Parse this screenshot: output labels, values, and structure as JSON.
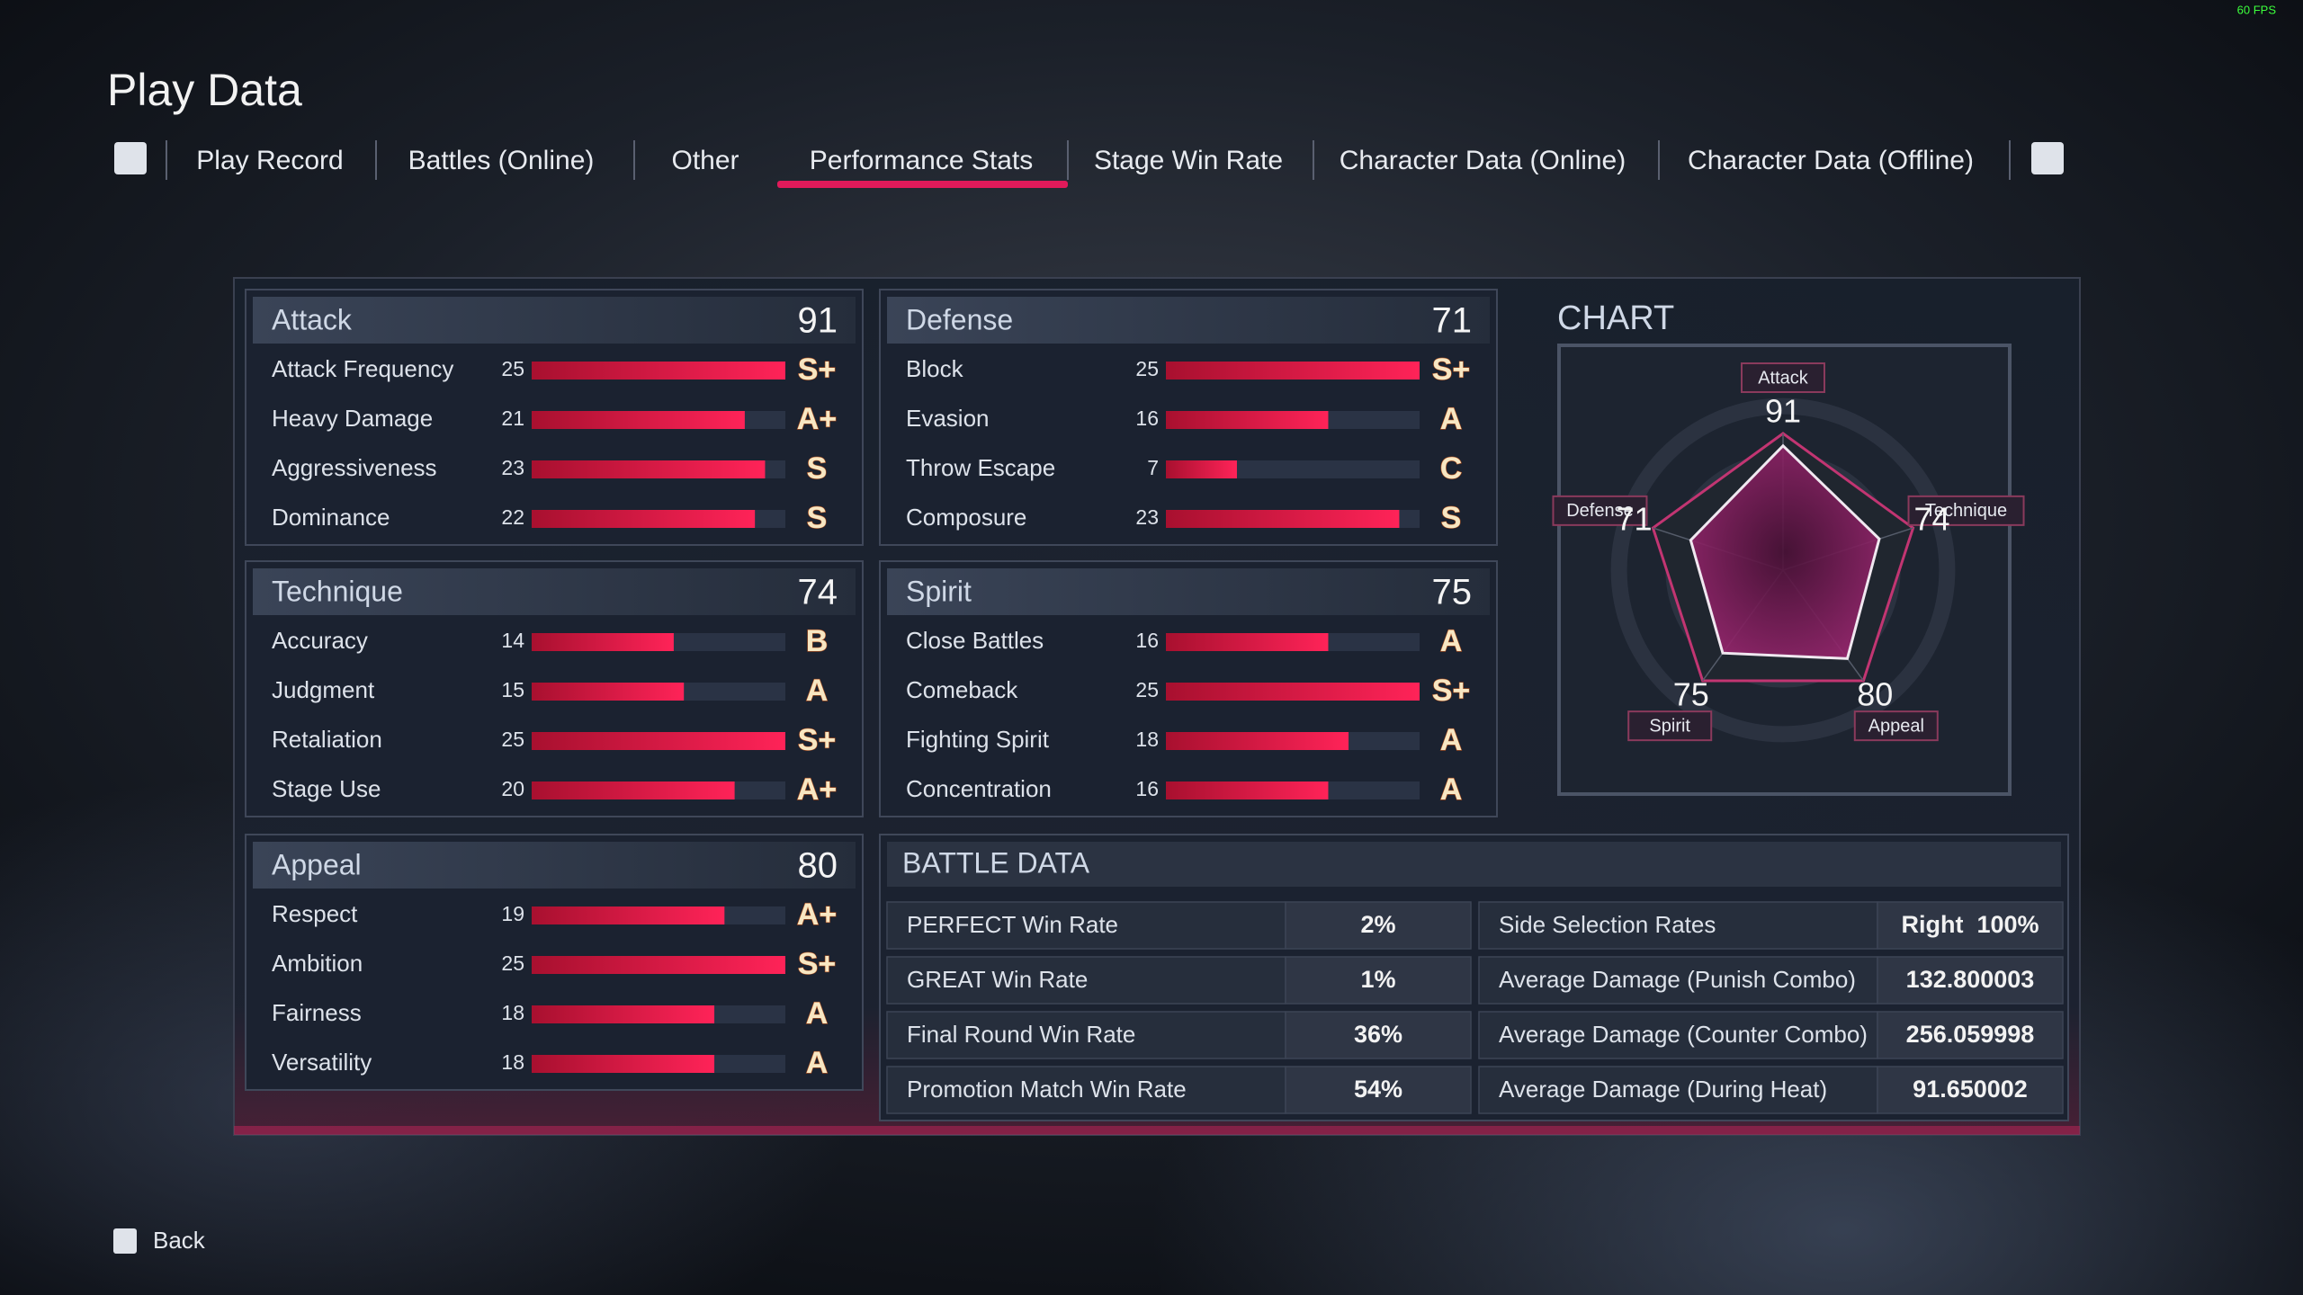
{
  "fps": "60 FPS",
  "title": "Play Data",
  "tabs": [
    "Play Record",
    "Battles (Online)",
    "Other",
    "Performance Stats",
    "Stage Win Rate",
    "Character Data (Online)",
    "Character Data (Offline)"
  ],
  "active_tab": 3,
  "bar_range": [
    0,
    25
  ],
  "categories": [
    {
      "name": "Attack",
      "score": 91,
      "stats": [
        {
          "name": "Attack Frequency",
          "value": 25,
          "grade": "S+"
        },
        {
          "name": "Heavy Damage",
          "value": 21,
          "grade": "A+"
        },
        {
          "name": "Aggressiveness",
          "value": 23,
          "grade": "S"
        },
        {
          "name": "Dominance",
          "value": 22,
          "grade": "S"
        }
      ]
    },
    {
      "name": "Defense",
      "score": 71,
      "stats": [
        {
          "name": "Block",
          "value": 25,
          "grade": "S+"
        },
        {
          "name": "Evasion",
          "value": 16,
          "grade": "A"
        },
        {
          "name": "Throw Escape",
          "value": 7,
          "grade": "C"
        },
        {
          "name": "Composure",
          "value": 23,
          "grade": "S"
        }
      ]
    },
    {
      "name": "Technique",
      "score": 74,
      "stats": [
        {
          "name": "Accuracy",
          "value": 14,
          "grade": "B"
        },
        {
          "name": "Judgment",
          "value": 15,
          "grade": "A"
        },
        {
          "name": "Retaliation",
          "value": 25,
          "grade": "S+"
        },
        {
          "name": "Stage Use",
          "value": 20,
          "grade": "A+"
        }
      ]
    },
    {
      "name": "Spirit",
      "score": 75,
      "stats": [
        {
          "name": "Close Battles",
          "value": 16,
          "grade": "A"
        },
        {
          "name": "Comeback",
          "value": 25,
          "grade": "S+"
        },
        {
          "name": "Fighting Spirit",
          "value": 18,
          "grade": "A"
        },
        {
          "name": "Concentration",
          "value": 16,
          "grade": "A"
        }
      ]
    },
    {
      "name": "Appeal",
      "score": 80,
      "stats": [
        {
          "name": "Respect",
          "value": 19,
          "grade": "A+"
        },
        {
          "name": "Ambition",
          "value": 25,
          "grade": "S+"
        },
        {
          "name": "Fairness",
          "value": 18,
          "grade": "A"
        },
        {
          "name": "Versatility",
          "value": 18,
          "grade": "A"
        }
      ]
    }
  ],
  "chart": {
    "title": "CHART",
    "range": [
      0,
      100
    ],
    "axes": [
      {
        "label": "Attack",
        "value": 91
      },
      {
        "label": "Technique",
        "value": 74
      },
      {
        "label": "Appeal",
        "value": 80
      },
      {
        "label": "Spirit",
        "value": 75
      },
      {
        "label": "Defense",
        "value": 71
      }
    ]
  },
  "battle_data": {
    "title": "BATTLE DATA",
    "left": [
      {
        "label": "PERFECT Win Rate",
        "value": "2%"
      },
      {
        "label": "GREAT Win Rate",
        "value": "1%"
      },
      {
        "label": "Final Round Win Rate",
        "value": "36%"
      },
      {
        "label": "Promotion Match Win Rate",
        "value": "54%"
      }
    ],
    "right": [
      {
        "label": "Side Selection Rates",
        "value": "Right  100%"
      },
      {
        "label": "Average Damage (Punish Combo)",
        "value": "132.800003"
      },
      {
        "label": "Average Damage (Counter Combo)",
        "value": "256.059998"
      },
      {
        "label": "Average Damage (During Heat)",
        "value": "91.650002"
      }
    ]
  },
  "back": "Back"
}
